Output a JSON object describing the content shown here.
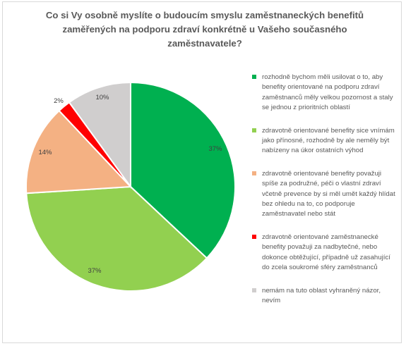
{
  "chart_data": {
    "type": "pie",
    "title": "Co si Vy osobně myslíte o budoucím smyslu zaměstnaneckých benefitů zaměřených na podporu zdraví konkrétně u Vašeho současného zaměstnavatele?",
    "legend_position": "right",
    "slices": [
      {
        "label": "rozhodně bychom měli usilovat o to, aby benefity orientované na podporu zdraví zaměstnanců měly velkou pozornost a staly se jednou z prioritních oblastí",
        "value": 37,
        "value_label": "37%",
        "color": "#00b050"
      },
      {
        "label": "zdravotně orientované benefity sice vnímám jako přínosné, rozhodně by ale neměly být nabízeny na úkor ostatních výhod",
        "value": 37,
        "value_label": "37%",
        "color": "#92d050"
      },
      {
        "label": "zdravotně orientované benefity považuji spíše za podružné, péči o vlastní zdraví včetně prevence by si měl umět každý hlídat bez ohledu na to, co podporuje zaměstnavatel nebo stát",
        "value": 14,
        "value_label": "14%",
        "color": "#f4b183"
      },
      {
        "label": "zdravotně orientované zaměstnanecké benefity považuji za nadbytečné, nebo dokonce obtěžující, případně už zasahující do zcela soukromé sféry zaměstnanců",
        "value": 2,
        "value_label": "2%",
        "color": "#ff0000"
      },
      {
        "label": "nemám na tuto oblast vyhraněný názor, nevím",
        "value": 10,
        "value_label": "10%",
        "color": "#d0cece"
      }
    ]
  }
}
